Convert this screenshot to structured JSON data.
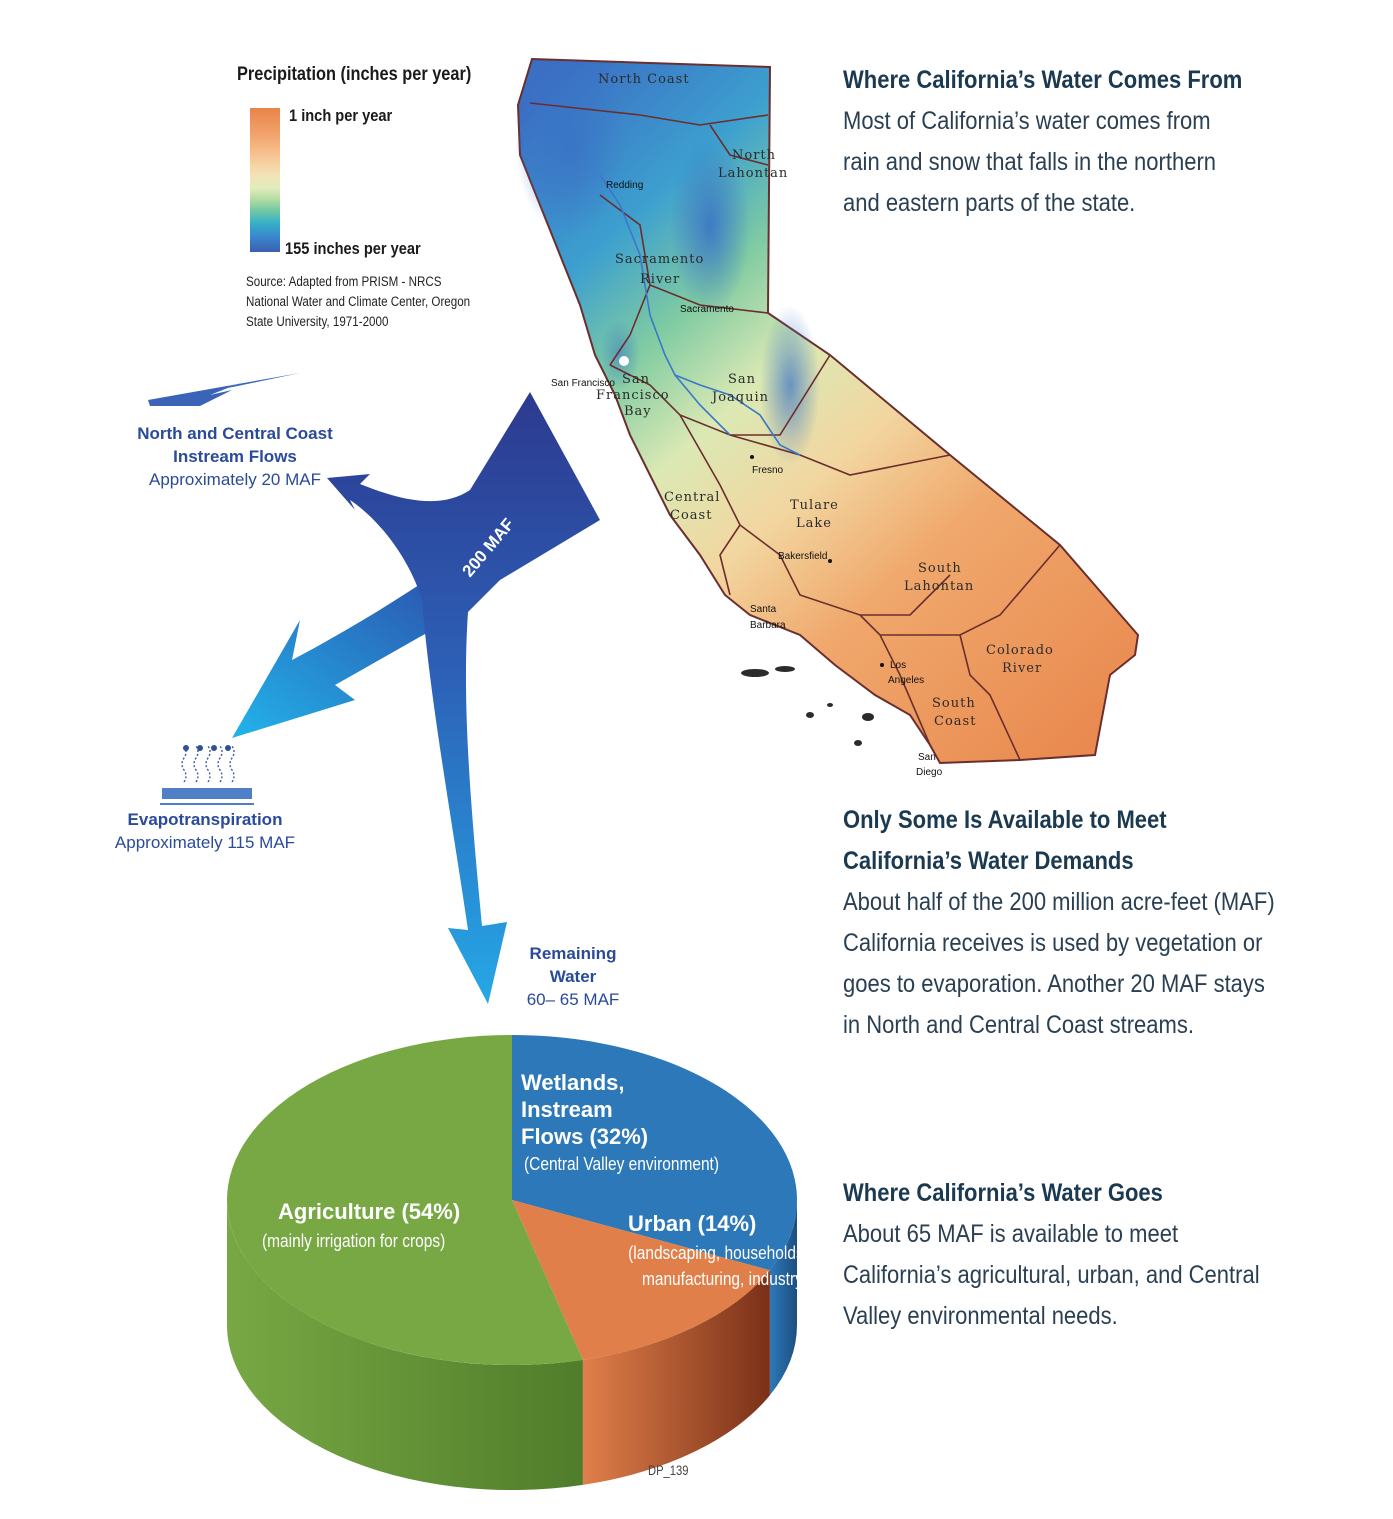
{
  "legend": {
    "title": "Precipitation (inches per year)",
    "top_label": "1 inch per year",
    "bottom_label": "155 inches per year",
    "source_line1": "Source: Adapted from PRISM - NRCS",
    "source_line2": "National Water and Climate Center, Oregon",
    "source_line3": "State University, 1971-2000",
    "colors": [
      "#e8844a",
      "#f2a26a",
      "#f7c493",
      "#f4e2b4",
      "#e8efc0",
      "#c6e3a3",
      "#8fd0a2",
      "#4fbfb3",
      "#2c9fd0",
      "#3b78c7",
      "#3b5fb0"
    ]
  },
  "flows": {
    "main_arrow_label": "200 MAF",
    "north_coast": {
      "line1": "North and Central Coast",
      "line2": "Instream Flows",
      "line3": "Approximately 20 MAF"
    },
    "evapo": {
      "line1": "Evapotranspiration",
      "line2": "Approximately 115 MAF"
    },
    "remaining": {
      "line1": "Remaining",
      "line2": "Water",
      "line3": "60– 65 MAF"
    }
  },
  "map": {
    "regions": [
      "North Coast",
      "North",
      "Lahontan",
      "Sacramento",
      "River",
      "San",
      "Francisco",
      "Bay",
      "San",
      "Joaquin",
      "Central",
      "Coast",
      "Tulare",
      "Lake",
      "South",
      "Lahontan",
      "Colorado",
      "River",
      "South",
      "Coast"
    ],
    "cities": [
      "Redding",
      "Sacramento",
      "San Francisco",
      "Fresno",
      "Bakersfield",
      "Santa",
      "Barbara",
      "Los",
      "Angeles",
      "San",
      "Diego"
    ]
  },
  "side": {
    "s1_heading": "Where California’s Water Comes From",
    "s1_lines": [
      "Most of California’s water comes from",
      "rain and snow that falls in the northern",
      "and eastern parts of the state."
    ],
    "s2_heading_lines": [
      "Only Some Is Available to Meet",
      "California’s Water Demands"
    ],
    "s2_lines": [
      "About half of the 200 million acre-feet (MAF)",
      "California receives is used by vegetation or",
      "goes to evaporation. Another 20 MAF stays",
      "in North and Central Coast streams."
    ],
    "s3_heading": "Where California’s Water Goes",
    "s3_lines": [
      "About 65 MAF is available to meet",
      "California’s agricultural, urban, and Central",
      "Valley environmental needs."
    ]
  },
  "pie": {
    "agriculture": {
      "title": "Agriculture (54%)",
      "sub": "(mainly irrigation for crops)"
    },
    "wetlands": {
      "title_lines": [
        "Wetlands,",
        "Instream",
        "Flows (32%)"
      ],
      "sub": "(Central Valley environment)"
    },
    "urban": {
      "title": "Urban (14%)",
      "sub_lines": [
        "(landscaping, households,",
        "manufacturing, industry)"
      ]
    },
    "colors": {
      "agriculture": "#78a844",
      "wetlands": "#2d78b8",
      "urban": "#e07f4a"
    }
  },
  "chart_data": {
    "type": "pie",
    "categories": [
      "Agriculture",
      "Wetlands, Instream Flows",
      "Urban"
    ],
    "values": [
      54,
      32,
      14
    ]
  },
  "footer": {
    "code": "DP_139"
  }
}
